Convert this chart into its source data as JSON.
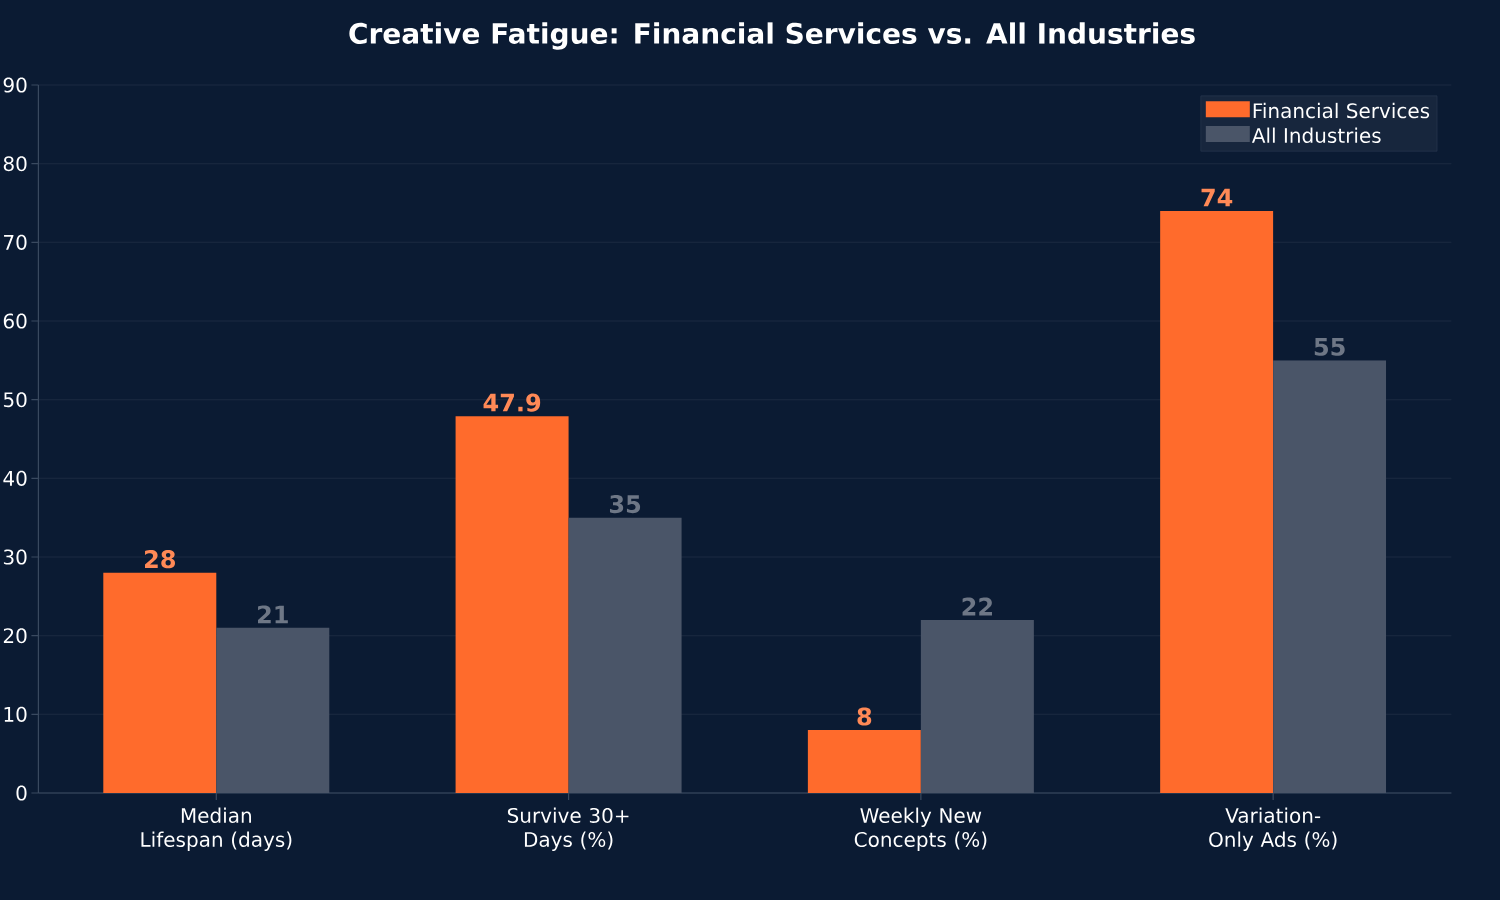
{
  "chart_data": {
    "type": "bar",
    "title": "Creative Fatigue: Financial Services vs. All Industries",
    "categories": [
      "Median Lifespan (days)",
      "Survive 30+ Days (%)",
      "Weekly New Concepts (%)",
      "Variation-Only Ads (%)"
    ],
    "series": [
      {
        "name": "Financial Services",
        "color": "#ff6b2c",
        "values": [
          28,
          47.9,
          8,
          74
        ]
      },
      {
        "name": "All Industries",
        "color": "#4a5568",
        "values": [
          21,
          35,
          22,
          55
        ]
      }
    ],
    "ylim": [
      0,
      90
    ],
    "yticks": [
      0,
      10,
      20,
      30,
      40,
      50,
      60,
      70,
      80,
      90
    ],
    "grid": "y",
    "legend": "top right",
    "data_labels": true
  }
}
